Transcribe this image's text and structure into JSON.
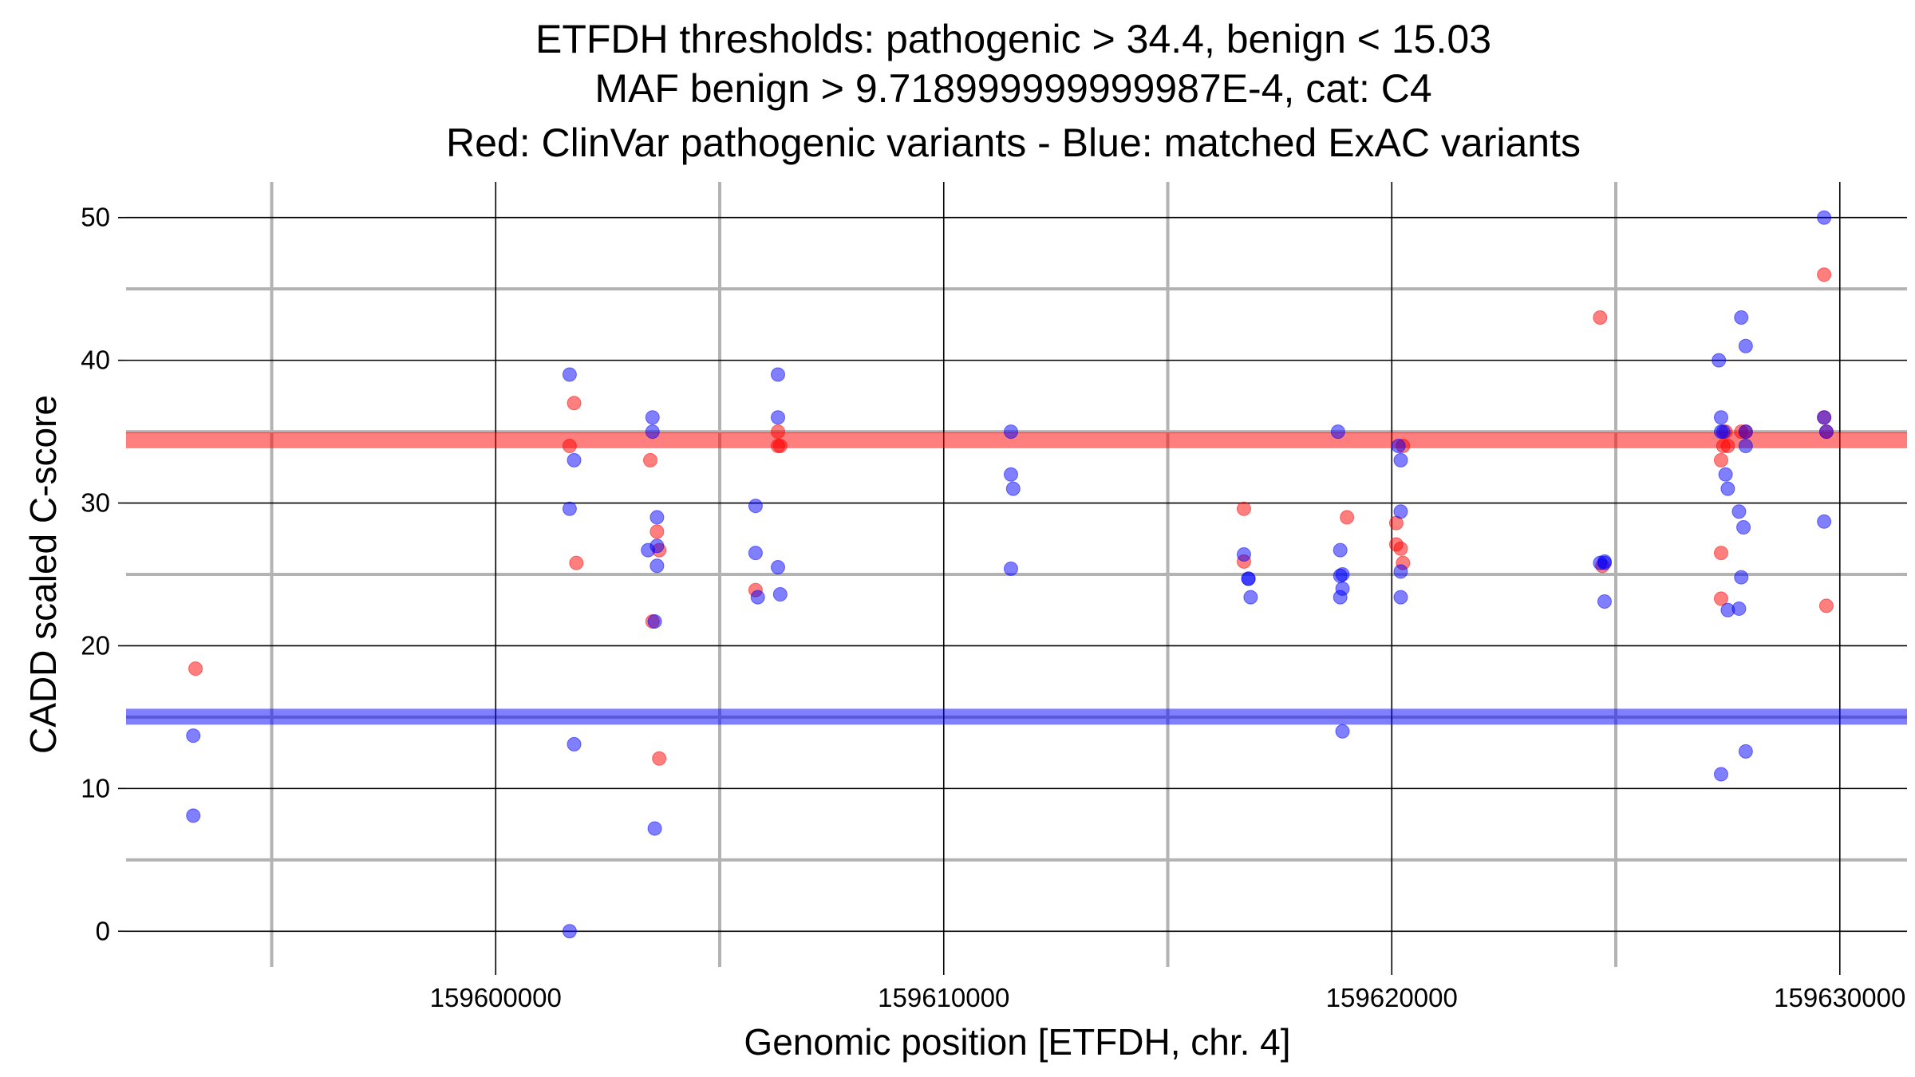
{
  "chart_data": {
    "type": "scatter",
    "title_lines": [
      "ETFDH thresholds: pathogenic > 34.4, benign < 15.03",
      "MAF benign > 9.718999999999987E-4, cat: C4",
      "Red: ClinVar pathogenic variants - Blue: matched ExAC variants"
    ],
    "xlabel": "Genomic position [ETFDH, chr. 4]",
    "ylabel": "CADD scaled C-score",
    "xlim": [
      159591750,
      159631500
    ],
    "ylim": [
      -2.5,
      52.5
    ],
    "x_major_ticks": [
      159600000,
      159610000,
      159620000,
      159630000
    ],
    "x_tick_labels": [
      "159600000",
      "159610000",
      "159620000",
      "159630000"
    ],
    "x_minor_ticks": [
      159595000,
      159605000,
      159615000,
      159625000
    ],
    "y_major_ticks": [
      0,
      10,
      20,
      30,
      40,
      50
    ],
    "y_tick_labels": [
      "0",
      "10",
      "20",
      "30",
      "40",
      "50"
    ],
    "y_minor_ticks": [
      5,
      15,
      25,
      35,
      45
    ],
    "thresholds": {
      "pathogenic": 34.4,
      "benign": 15.03,
      "pathogenic_color": "#ff0000",
      "benign_color": "#0000ff"
    },
    "colors": {
      "pathogenic": "#ff0000",
      "benign": "#0000ff",
      "major_grid": "#000000",
      "minor_grid": "#b3b3b3"
    },
    "series": [
      {
        "name": "ClinVar pathogenic variants",
        "color": "#ff0000",
        "x": [
          159593300,
          159601650,
          159601750,
          159601800,
          159603450,
          159603500,
          159603600,
          159603650,
          159603650,
          159605800,
          159606300,
          159606300,
          159606350,
          159616700,
          159616700,
          159619000,
          159620100,
          159620100,
          159620200,
          159620250,
          159620250,
          159624650,
          159624700,
          159627350,
          159627350,
          159627350,
          159627400,
          159627450,
          159627500,
          159627800,
          159627900,
          159629650,
          159629700,
          159629650,
          159629700
        ],
        "y": [
          18.4,
          34.0,
          37.0,
          25.8,
          33.0,
          21.7,
          28.0,
          26.7,
          12.1,
          23.9,
          34.0,
          35.0,
          34.0,
          29.6,
          25.9,
          29.0,
          28.6,
          27.1,
          26.8,
          34.0,
          25.8,
          43.0,
          25.6,
          33.0,
          26.5,
          23.3,
          34.0,
          35.0,
          34.0,
          35.0,
          35.0,
          46.0,
          22.8,
          36.0,
          35.0
        ]
      },
      {
        "name": "matched ExAC variants",
        "color": "#0000ff",
        "x": [
          159593250,
          159593250,
          159601650,
          159601650,
          159601750,
          159601750,
          159601650,
          159603400,
          159603500,
          159603500,
          159603600,
          159603600,
          159603600,
          159603550,
          159603550,
          159605800,
          159605800,
          159605850,
          159606300,
          159606300,
          159606300,
          159606350,
          159611500,
          159611500,
          159611550,
          159611500,
          159616700,
          159616800,
          159616800,
          159616850,
          159618800,
          159618850,
          159618850,
          159618900,
          159618850,
          159618900,
          159618900,
          159620150,
          159620200,
          159620200,
          159620200,
          159620200,
          159624650,
          159624750,
          159624750,
          159624750,
          159627300,
          159627350,
          159627350,
          159627400,
          159627450,
          159627500,
          159627500,
          159627750,
          159627750,
          159627800,
          159627800,
          159627850,
          159627900,
          159627900,
          159627900,
          159627350,
          159627900,
          159629650,
          159629650,
          159629700,
          159629650
        ],
        "y": [
          13.7,
          8.1,
          39.0,
          29.6,
          33.0,
          13.1,
          0.0,
          26.7,
          36.0,
          35.0,
          29.0,
          27.0,
          25.6,
          21.7,
          7.2,
          29.8,
          26.5,
          23.4,
          39.0,
          36.0,
          25.5,
          23.6,
          35.0,
          32.0,
          31.0,
          25.4,
          26.4,
          24.7,
          24.7,
          23.4,
          35.0,
          24.9,
          23.4,
          25.0,
          26.7,
          24.0,
          14.0,
          34.0,
          29.4,
          25.2,
          23.4,
          33.0,
          25.8,
          25.8,
          25.9,
          23.1,
          40.0,
          36.0,
          35.0,
          35.0,
          32.0,
          31.0,
          22.5,
          29.4,
          22.6,
          43.0,
          24.8,
          28.3,
          35.0,
          41.0,
          34.0,
          11.0,
          12.6,
          50.0,
          36.0,
          35.0,
          28.7
        ]
      }
    ]
  }
}
